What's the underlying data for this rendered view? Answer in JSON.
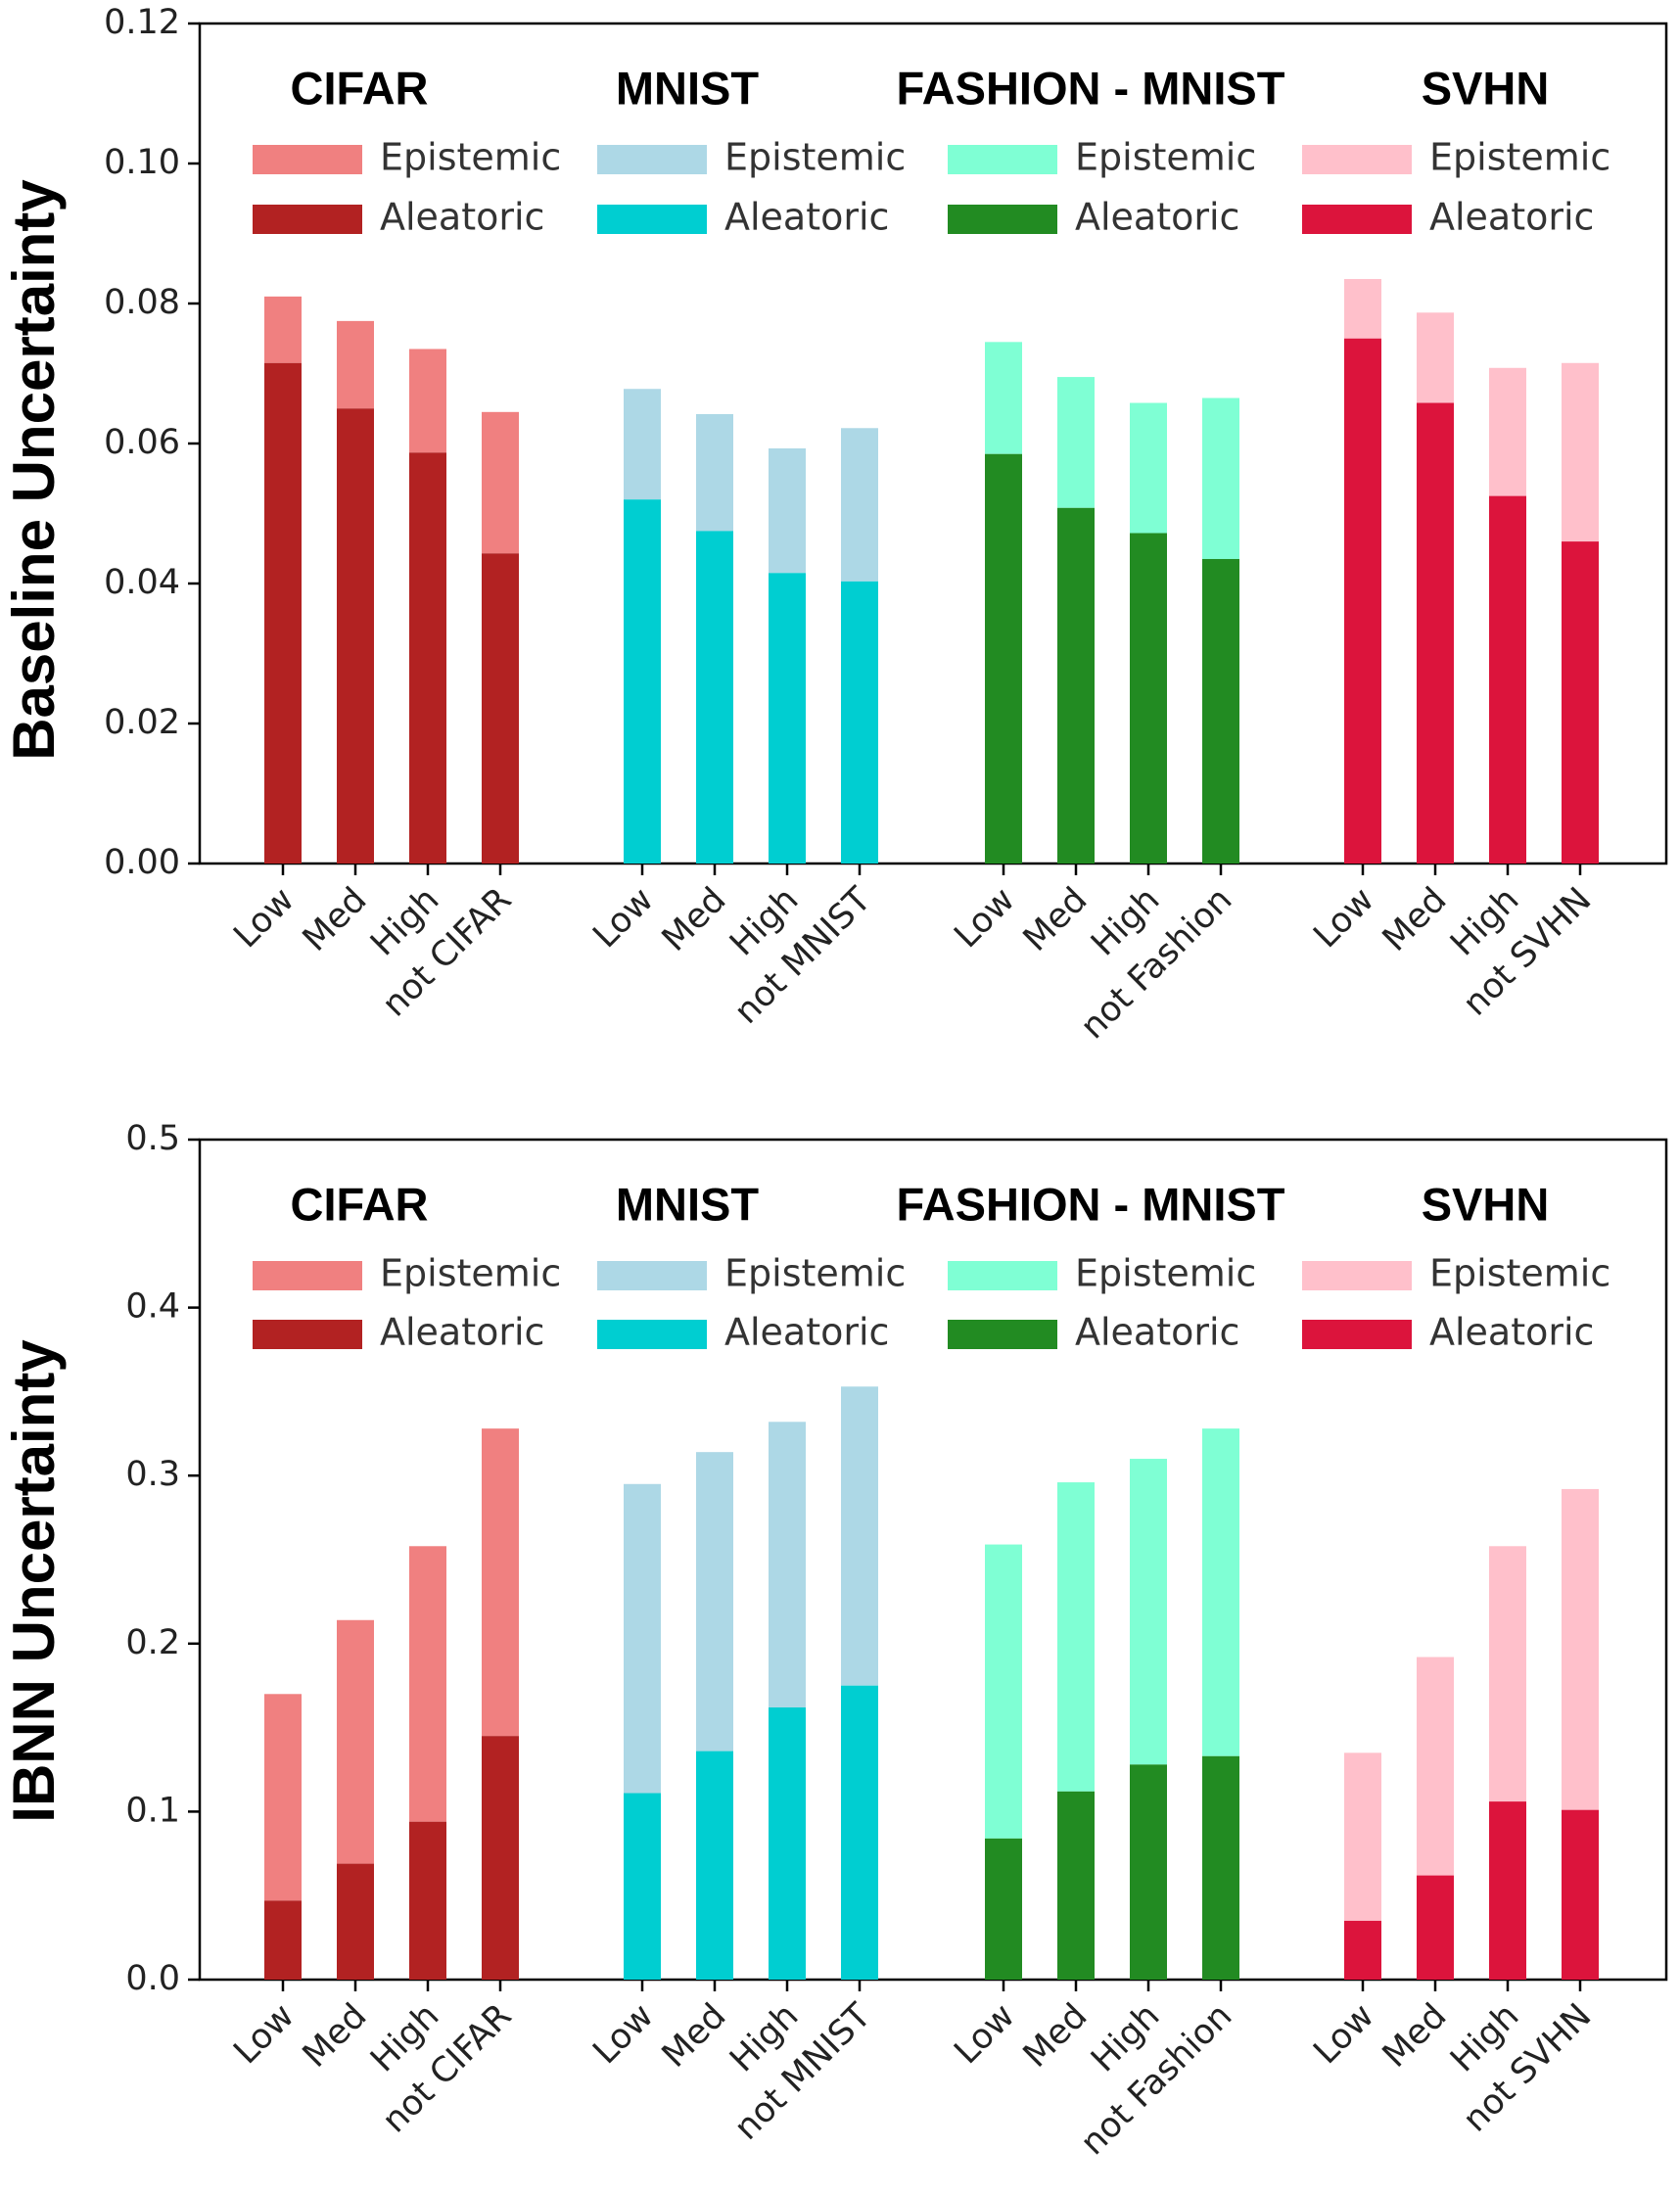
{
  "chart_data": [
    {
      "type": "bar",
      "stacked": true,
      "ylabel": "Baseline Uncertainty",
      "ylim": [
        0,
        0.12
      ],
      "yticks": [
        "0.00",
        "0.02",
        "0.04",
        "0.06",
        "0.08",
        "0.10",
        "0.12"
      ],
      "groups": [
        {
          "title": "CIFAR",
          "categories": [
            "Low",
            "Med",
            "High",
            "not CIFAR"
          ],
          "epistemic_label": "Epistemic",
          "aleatoric_label": "Aleatoric",
          "epistemic_color": "#f08080",
          "aleatoric_color": "#b22222",
          "aleatoric": [
            0.0715,
            0.065,
            0.0587,
            0.0443
          ],
          "total": [
            0.081,
            0.0775,
            0.0735,
            0.0645
          ]
        },
        {
          "title": "MNIST",
          "categories": [
            "Low",
            "Med",
            "High",
            "not MNIST"
          ],
          "epistemic_label": "Epistemic",
          "aleatoric_label": "Aleatoric",
          "epistemic_color": "#add8e6",
          "aleatoric_color": "#00ced1",
          "aleatoric": [
            0.052,
            0.0475,
            0.0415,
            0.0403
          ],
          "total": [
            0.0678,
            0.0642,
            0.0593,
            0.0622
          ]
        },
        {
          "title": "FASHION - MNIST",
          "categories": [
            "Low",
            "Med",
            "High",
            "not Fashion"
          ],
          "epistemic_label": "Epistemic",
          "aleatoric_label": "Aleatoric",
          "epistemic_color": "#7fffd4",
          "aleatoric_color": "#228b22",
          "aleatoric": [
            0.0585,
            0.0508,
            0.0472,
            0.0435
          ],
          "total": [
            0.0745,
            0.0695,
            0.0658,
            0.0665
          ]
        },
        {
          "title": "SVHN",
          "categories": [
            "Low",
            "Med",
            "High",
            "not SVHN"
          ],
          "epistemic_label": "Epistemic",
          "aleatoric_label": "Aleatoric",
          "epistemic_color": "#ffc0cb",
          "aleatoric_color": "#dc143c",
          "aleatoric": [
            0.075,
            0.0658,
            0.0525,
            0.046
          ],
          "total": [
            0.0835,
            0.0787,
            0.0708,
            0.0715
          ]
        }
      ]
    },
    {
      "type": "bar",
      "stacked": true,
      "ylabel": "IBNN Uncertainty",
      "ylim": [
        0,
        0.5
      ],
      "yticks": [
        "0.0",
        "0.1",
        "0.2",
        "0.3",
        "0.4",
        "0.5"
      ],
      "groups": [
        {
          "title": "CIFAR",
          "categories": [
            "Low",
            "Med",
            "High",
            "not CIFAR"
          ],
          "epistemic_label": "Epistemic",
          "aleatoric_label": "Aleatoric",
          "epistemic_color": "#f08080",
          "aleatoric_color": "#b22222",
          "aleatoric": [
            0.047,
            0.069,
            0.094,
            0.145
          ],
          "total": [
            0.17,
            0.214,
            0.258,
            0.328
          ]
        },
        {
          "title": "MNIST",
          "categories": [
            "Low",
            "Med",
            "High",
            "not MNIST"
          ],
          "epistemic_label": "Epistemic",
          "aleatoric_label": "Aleatoric",
          "epistemic_color": "#add8e6",
          "aleatoric_color": "#00ced1",
          "aleatoric": [
            0.111,
            0.136,
            0.162,
            0.175
          ],
          "total": [
            0.295,
            0.314,
            0.332,
            0.353
          ]
        },
        {
          "title": "FASHION - MNIST",
          "categories": [
            "Low",
            "Med",
            "High",
            "not Fashion"
          ],
          "epistemic_label": "Epistemic",
          "aleatoric_label": "Aleatoric",
          "epistemic_color": "#7fffd4",
          "aleatoric_color": "#228b22",
          "aleatoric": [
            0.084,
            0.112,
            0.128,
            0.133
          ],
          "total": [
            0.259,
            0.296,
            0.31,
            0.328
          ]
        },
        {
          "title": "SVHN",
          "categories": [
            "Low",
            "Med",
            "High",
            "not SVHN"
          ],
          "epistemic_label": "Epistemic",
          "aleatoric_label": "Aleatoric",
          "epistemic_color": "#ffc0cb",
          "aleatoric_color": "#dc143c",
          "aleatoric": [
            0.035,
            0.062,
            0.106,
            0.101
          ],
          "total": [
            0.135,
            0.192,
            0.258,
            0.292
          ]
        }
      ]
    }
  ]
}
